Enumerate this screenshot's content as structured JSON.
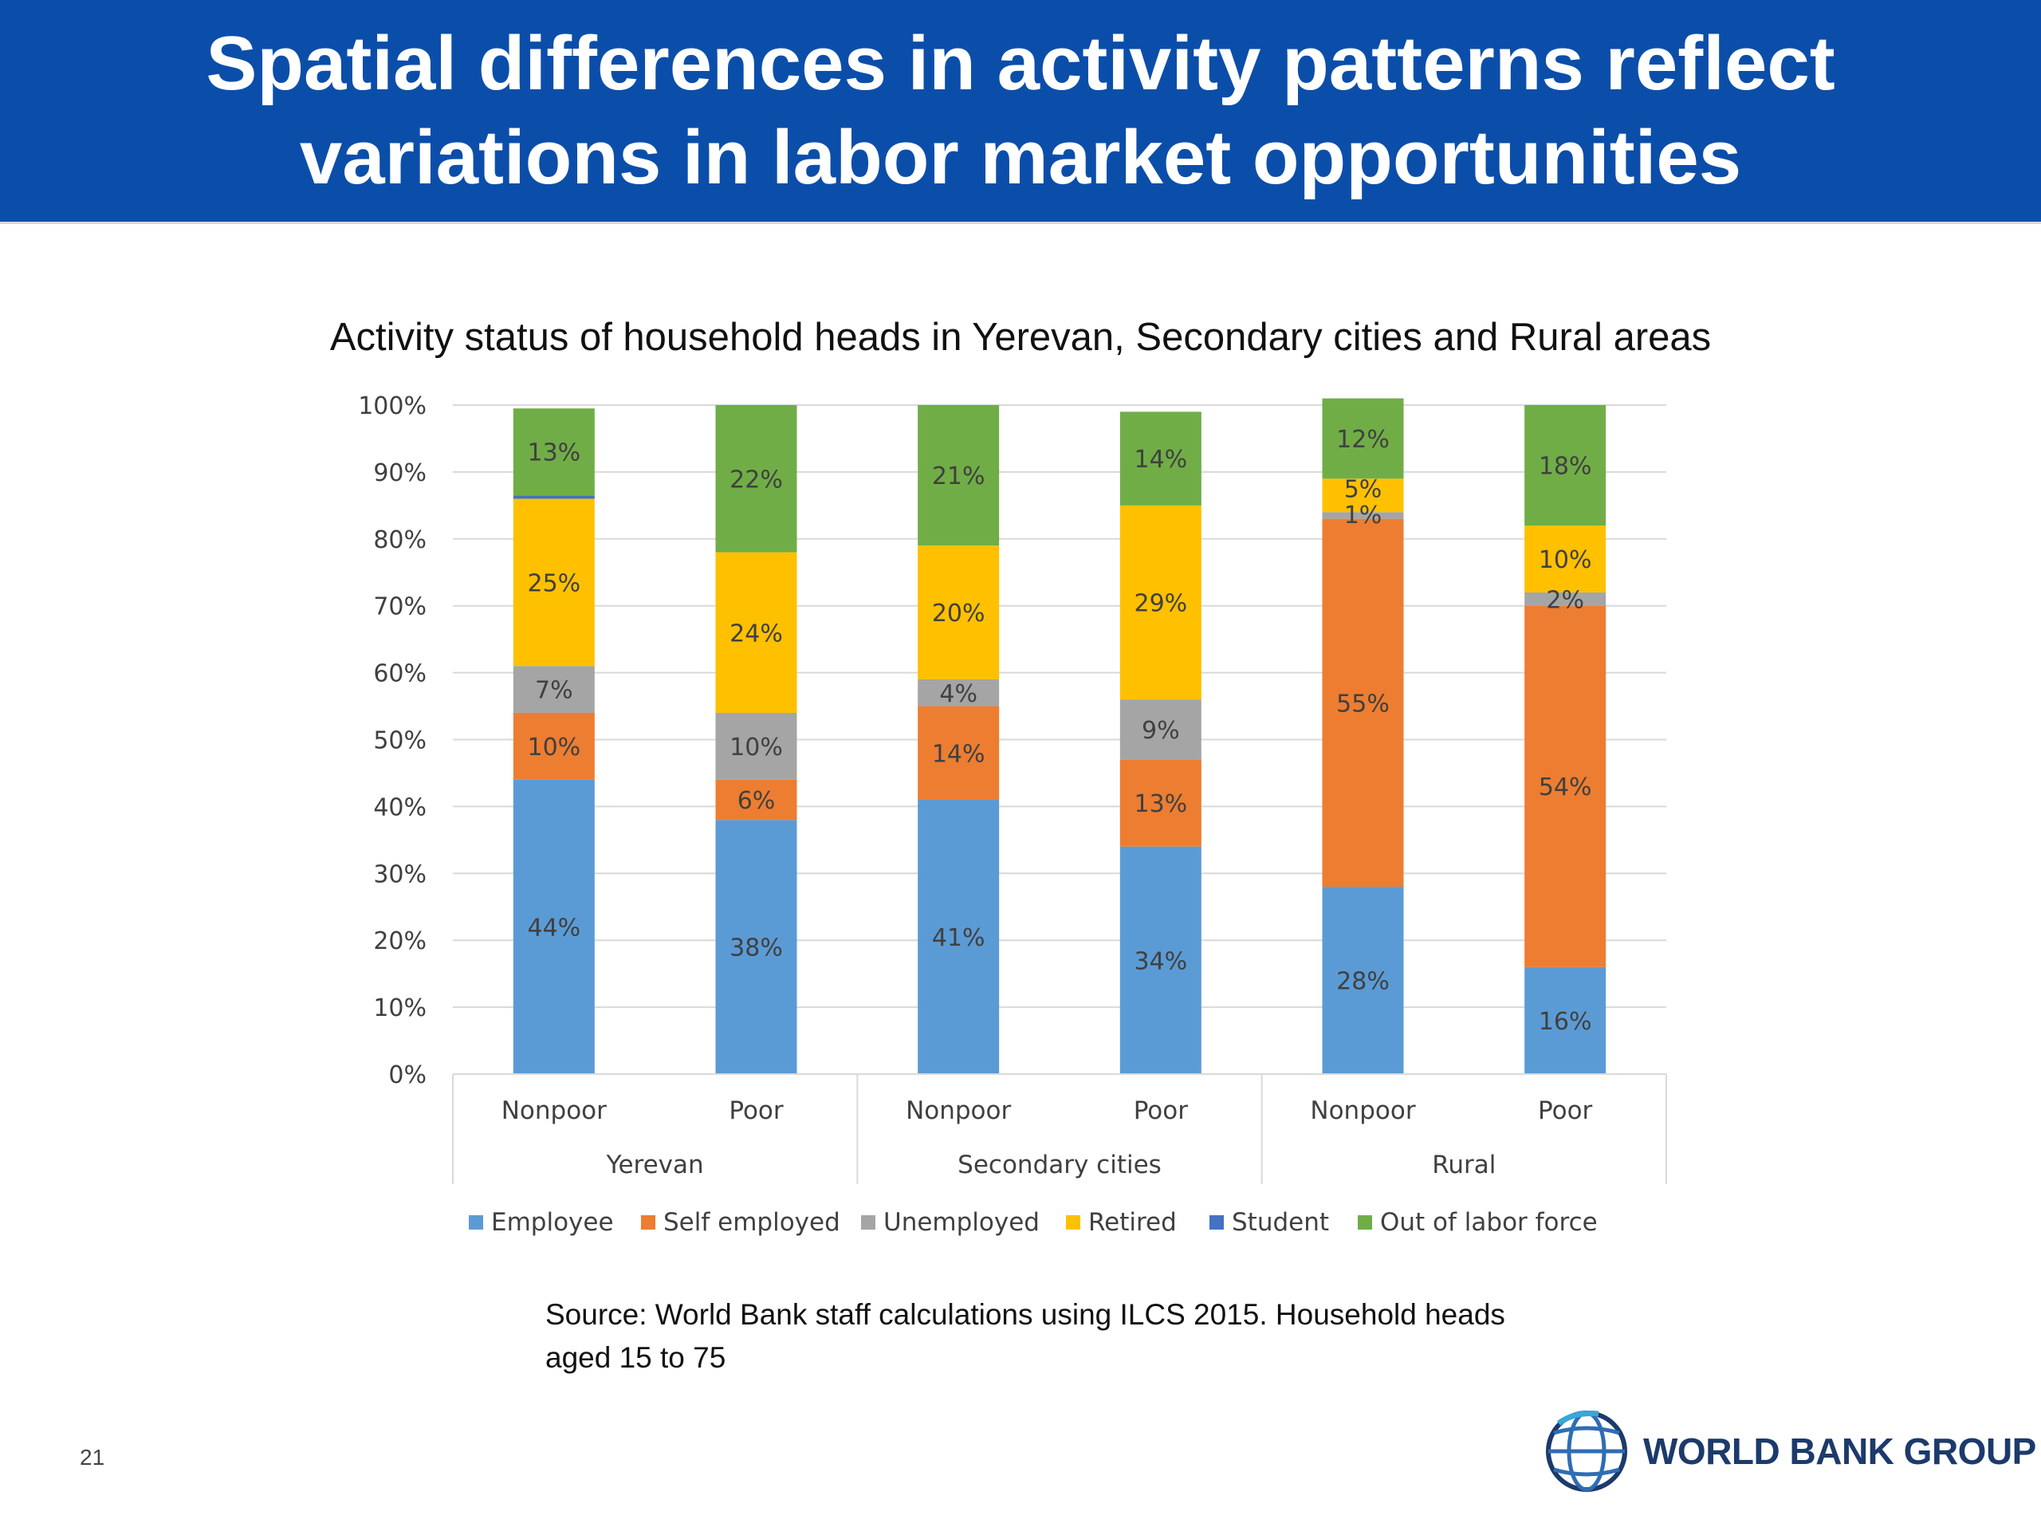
{
  "slide": {
    "title_line1": "Spatial differences in activity patterns reflect",
    "title_line2": "variations in labor market opportunities",
    "source_line1": "Source: World Bank staff calculations using ILCS 2015. Household heads",
    "source_line2": "aged 15 to 75",
    "page_number": "21",
    "logo_text": "WORLD BANK GROUP",
    "colors": {
      "banner": "#0b4eaa",
      "employee": "#5b9bd5",
      "self_employed": "#ed7d31",
      "unemployed": "#a5a5a5",
      "retired": "#ffc000",
      "student": "#4472c4",
      "out_of_labor_force": "#70ad47"
    }
  },
  "chart_data": {
    "type": "bar",
    "stacked": true,
    "title": "Activity status of household heads in Yerevan, Secondary cities and Rural areas",
    "categories": [
      "Nonpoor",
      "Poor",
      "Nonpoor",
      "Poor",
      "Nonpoor",
      "Poor"
    ],
    "groups": [
      {
        "name": "Yerevan",
        "categories": [
          "Nonpoor",
          "Poor"
        ]
      },
      {
        "name": "Secondary cities",
        "categories": [
          "Nonpoor",
          "Poor"
        ]
      },
      {
        "name": "Rural",
        "categories": [
          "Nonpoor",
          "Poor"
        ]
      }
    ],
    "series": [
      {
        "name": "Employee",
        "color": "#5b9bd5",
        "values": [
          44,
          38,
          41,
          34,
          28,
          16
        ],
        "labels": [
          "44%",
          "38%",
          "41%",
          "34%",
          "28%",
          "16%"
        ]
      },
      {
        "name": "Self employed",
        "color": "#ed7d31",
        "values": [
          10,
          6,
          14,
          13,
          55,
          54
        ],
        "labels": [
          "10%",
          "6%",
          "14%",
          "13%",
          "55%",
          "54%"
        ]
      },
      {
        "name": "Unemployed",
        "color": "#a5a5a5",
        "values": [
          7,
          10,
          4,
          9,
          1,
          2
        ],
        "labels": [
          "7%",
          "10%",
          "4%",
          "9%",
          "1%",
          "2%"
        ]
      },
      {
        "name": "Retired",
        "color": "#ffc000",
        "values": [
          25,
          24,
          20,
          29,
          5,
          10
        ],
        "labels": [
          "25%",
          "24%",
          "20%",
          "29%",
          "5%",
          "10%"
        ]
      },
      {
        "name": "Student",
        "color": "#4472c4",
        "values": [
          0.5,
          0,
          0,
          0,
          0,
          0
        ],
        "labels": [
          "",
          "",
          "",
          "",
          "",
          ""
        ]
      },
      {
        "name": "Out of labor force",
        "color": "#70ad47",
        "values": [
          13,
          22,
          21,
          14,
          12,
          18
        ],
        "labels": [
          "13%",
          "22%",
          "21%",
          "14%",
          "12%",
          "18%"
        ]
      }
    ],
    "ylim": [
      0,
      100
    ],
    "yticks": [
      "0%",
      "10%",
      "20%",
      "30%",
      "40%",
      "50%",
      "60%",
      "70%",
      "80%",
      "90%",
      "100%"
    ],
    "grid": true,
    "legend": "bottom"
  }
}
